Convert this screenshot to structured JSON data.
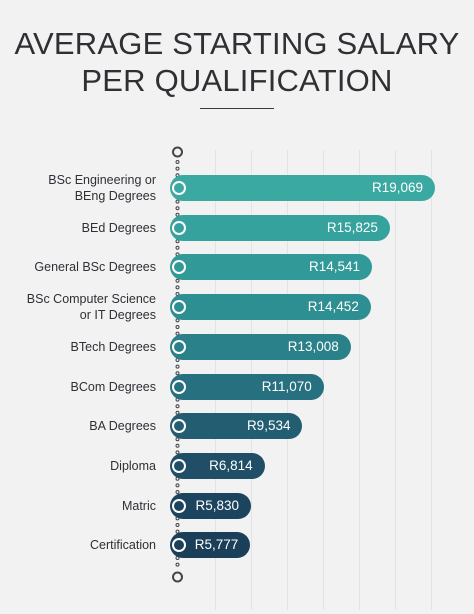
{
  "title": {
    "line1": "AVERAGE STARTING SALARY",
    "line2": "PER QUALIFICATION"
  },
  "chart_data": {
    "type": "bar",
    "orientation": "horizontal",
    "title": "AVERAGE STARTING SALARY PER QUALIFICATION",
    "xlabel": "",
    "ylabel": "",
    "xlim": [
      0,
      20000
    ],
    "grid": true,
    "categories": [
      "BSc Engineering or BEng Degrees",
      "BEd Degrees",
      "General BSc Degrees",
      "BSc Computer Science or IT Degrees",
      "BTech Degrees",
      "BCom Degrees",
      "BA Degrees",
      "Diploma",
      "Matric",
      "Certification"
    ],
    "label_lines": [
      [
        "BSc Engineering or",
        "BEng Degrees"
      ],
      [
        "BEd Degrees"
      ],
      [
        "General BSc Degrees"
      ],
      [
        "BSc Computer Science",
        "or IT Degrees"
      ],
      [
        "BTech Degrees"
      ],
      [
        "BCom Degrees"
      ],
      [
        "BA Degrees"
      ],
      [
        "Diploma"
      ],
      [
        "Matric"
      ],
      [
        "Certification"
      ]
    ],
    "values": [
      19069,
      15825,
      14541,
      14452,
      13008,
      11070,
      9534,
      6814,
      5830,
      5777
    ],
    "value_labels": [
      "R19,069",
      "R15,825",
      "R14,541",
      "R14,452",
      "R13,008",
      "R11,070",
      "R9,534",
      "R6,814",
      "R5,830",
      "R5,777"
    ],
    "colors": [
      "#3aa9a1",
      "#35a29d",
      "#319a98",
      "#2d8f91",
      "#2a8189",
      "#27707f",
      "#235d72",
      "#1f4e66",
      "#1c445e",
      "#1b3f58"
    ],
    "timeline_color": "#454548",
    "gridline_color": "#e3e3e6"
  }
}
